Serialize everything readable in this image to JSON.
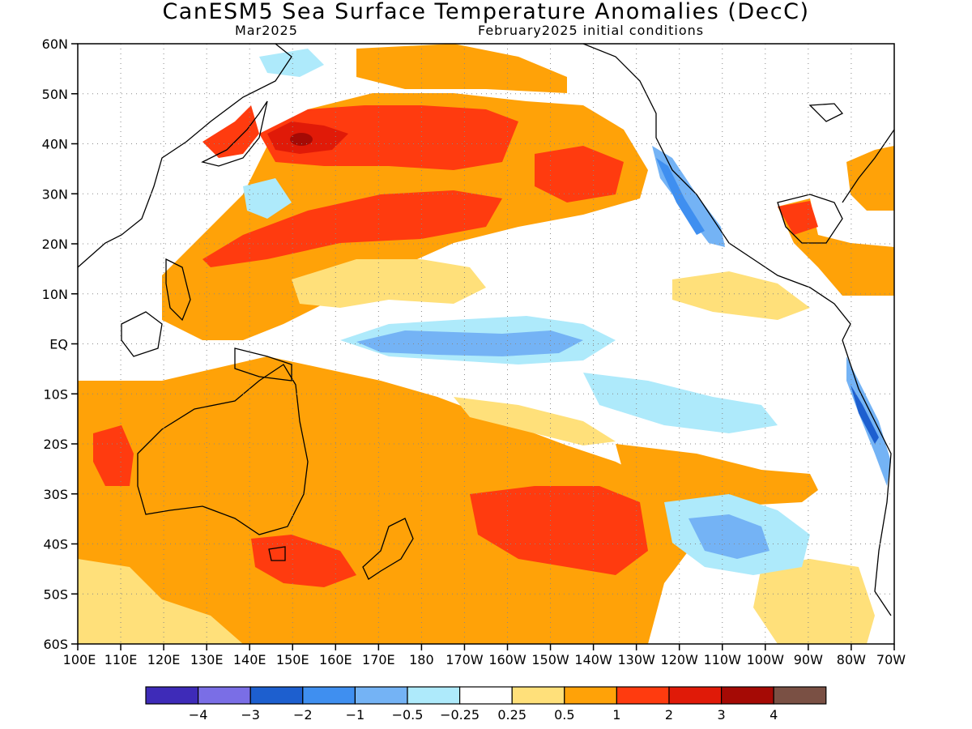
{
  "title": "CanESM5 Sea Surface Temperature Anomalies (DecC)",
  "valid_month": "Mar2025",
  "initial_conditions": "February2025 initial conditions",
  "map": {
    "lat_labels": [
      "60N",
      "50N",
      "40N",
      "30N",
      "20N",
      "10N",
      "EQ",
      "10S",
      "20S",
      "30S",
      "40S",
      "50S",
      "60S"
    ],
    "lon_labels": [
      "100E",
      "110E",
      "120E",
      "130E",
      "140E",
      "150E",
      "160E",
      "170E",
      "180",
      "170W",
      "160W",
      "150W",
      "140W",
      "130W",
      "120W",
      "110W",
      "100W",
      "90W",
      "80W",
      "70W"
    ],
    "lat_range": [
      -60,
      60
    ],
    "lon_range": [
      100,
      290
    ],
    "grid": "dotted"
  },
  "colorbar": {
    "bins": [
      {
        "color": "#3e2bb8"
      },
      {
        "color": "#7a6ee6"
      },
      {
        "color": "#1d5fcf"
      },
      {
        "color": "#3f8ff0"
      },
      {
        "color": "#74b3f5"
      },
      {
        "color": "#aeeafb"
      },
      {
        "color": "#ffffff"
      },
      {
        "color": "#ffe07a"
      },
      {
        "color": "#ffa208"
      },
      {
        "color": "#ff3b0f"
      },
      {
        "color": "#e01a08"
      },
      {
        "color": "#a50a05"
      },
      {
        "color": "#7a5044"
      }
    ],
    "labels": [
      "−4",
      "−3",
      "−2",
      "−1",
      "−0.5",
      "−0.25",
      "0.25",
      "0.5",
      "1",
      "2",
      "3",
      "4"
    ]
  }
}
